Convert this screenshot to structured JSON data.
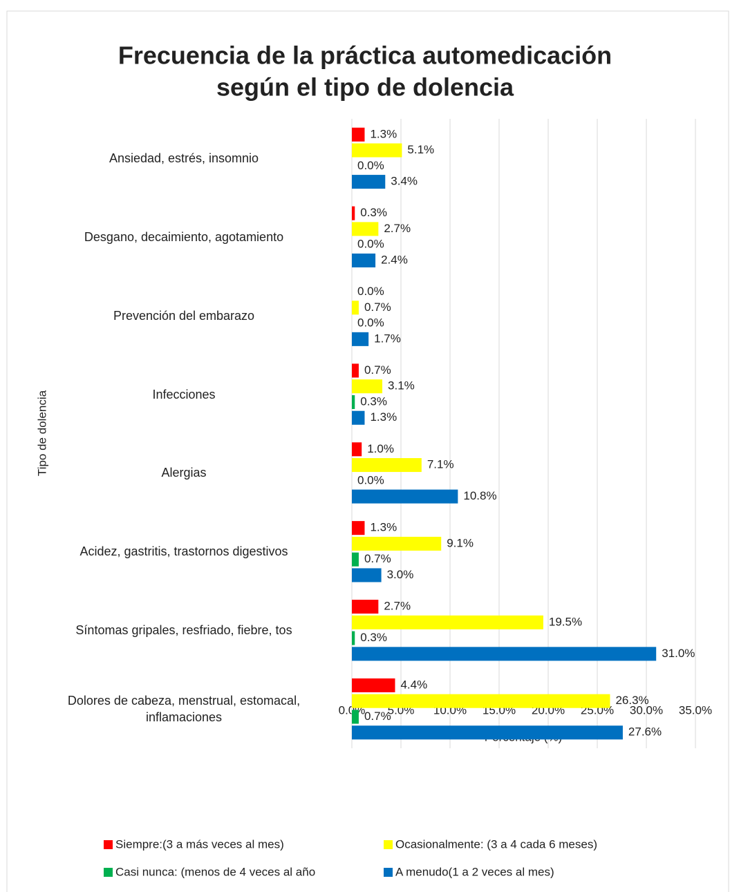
{
  "chart_data": {
    "type": "bar",
    "orientation": "horizontal",
    "title": "Frecuencia de la práctica automedicación",
    "subtitle": "según el tipo de dolencia",
    "x_label": "Porcentaje (%)",
    "y_label": "Tipo de dolencia",
    "categories": [
      "Ansiedad, estrés, insomnio",
      "Desgano, decaimiento, agotamiento",
      "Prevención del embarazo",
      "Infecciones",
      "Alergias",
      "Acidez, gastritis, trastornos digestivos",
      "Síntomas gripales, resfriado, fiebre, tos",
      "Dolores de cabeza, menstrual, estomacal, inflamaciones"
    ],
    "series": [
      {
        "name": "Siempre:(3 a más veces al mes)",
        "color": "#ff0000",
        "values": [
          1.3,
          0.3,
          0.0,
          0.7,
          1.0,
          1.3,
          2.7,
          4.4
        ],
        "value_labels": [
          "1.3%",
          "0.3%",
          "0.0%",
          "0.7%",
          "1.0%",
          "1.3%",
          "2.7%",
          "4.4%"
        ]
      },
      {
        "name": "Ocasionalmente: (3 a 4 cada 6 meses)",
        "color": "#ffff00",
        "values": [
          5.1,
          2.7,
          0.7,
          3.1,
          7.1,
          9.1,
          19.5,
          26.3
        ],
        "value_labels": [
          "5.1%",
          "2.7%",
          "0.7%",
          "3.1%",
          "7.1%",
          "9.1%",
          "19.5%",
          "26.3%"
        ]
      },
      {
        "name": "Casi nunca: (menos de 4 veces al año",
        "color": "#00b050",
        "values": [
          0.0,
          0.0,
          0.0,
          0.3,
          0.0,
          0.7,
          0.3,
          0.7
        ],
        "value_labels": [
          "0.0%",
          "0.0%",
          "0.0%",
          "0.3%",
          "0.0%",
          "0.7%",
          "0.3%",
          "0.7%"
        ]
      },
      {
        "name": "A menudo(1 a 2 veces al mes)",
        "color": "#0070c0",
        "values": [
          3.4,
          2.4,
          1.7,
          1.3,
          10.8,
          3.0,
          31.0,
          27.6
        ],
        "value_labels": [
          "3.4%",
          "2.4%",
          "1.7%",
          "1.3%",
          "10.8%",
          "3.0%",
          "31.0%",
          "27.6%"
        ]
      }
    ],
    "xlim": [
      0,
      35
    ],
    "xticks": [
      {
        "value": 0,
        "label": "0.0%"
      },
      {
        "value": 5,
        "label": "5.0%"
      },
      {
        "value": 10,
        "label": "10.0%"
      },
      {
        "value": 15,
        "label": "15.0%"
      },
      {
        "value": 20,
        "label": "20.0%"
      },
      {
        "value": 25,
        "label": "25.0%"
      },
      {
        "value": 30,
        "label": "30.0%"
      },
      {
        "value": 35,
        "label": "35.0%"
      }
    ],
    "grid": true,
    "legend": "bottom"
  }
}
